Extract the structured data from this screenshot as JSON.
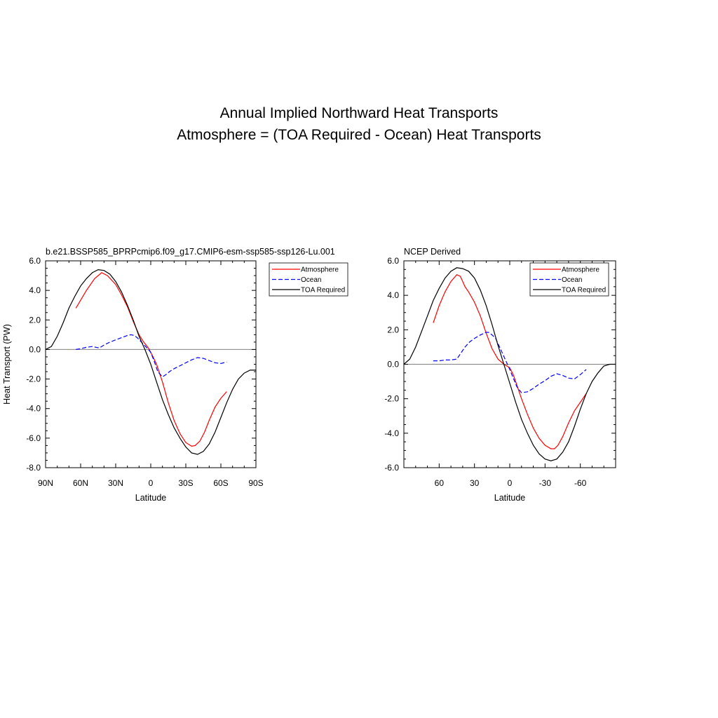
{
  "title": "Annual Implied Northward Heat Transports",
  "subtitle": "Atmosphere = (TOA Required - Ocean) Heat Transports",
  "chart_data": [
    {
      "type": "line",
      "title": "b.e21.BSSP585_BPRPcmip6.f09_g17.CMIP6-esm-ssp585-ssp126-Lu.001",
      "xlabel": "Latitude",
      "ylabel": "Heat Transport (PW)",
      "xlim": [
        90,
        -90
      ],
      "ylim": [
        -8,
        6
      ],
      "xticks": [
        90,
        60,
        30,
        0,
        -30,
        -60,
        -90
      ],
      "xtick_labels": [
        "90N",
        "60N",
        "30N",
        "0",
        "30S",
        "60S",
        "90S"
      ],
      "yticks": [
        6,
        4,
        2,
        0,
        -2,
        -4,
        -6,
        -8
      ],
      "ytick_labels": [
        "6.0",
        "4.0",
        "2.0",
        "0.0",
        "-2.0",
        "-4.0",
        "-6.0",
        "-8.0"
      ],
      "legend_position": "outside-right",
      "zero_line": true,
      "series": [
        {
          "name": "Atmosphere",
          "color": "#ff0000",
          "dash": "solid",
          "x": [
            64,
            55,
            48,
            42,
            37,
            30,
            25,
            20,
            15,
            10,
            6,
            2,
            0,
            -2,
            -5,
            -10,
            -15,
            -20,
            -25,
            -30,
            -35,
            -38,
            -42,
            -46,
            -50,
            -55,
            -60,
            -65
          ],
          "y": [
            2.8,
            4.0,
            4.8,
            5.2,
            5.0,
            4.4,
            3.7,
            2.9,
            1.9,
            1.0,
            0.5,
            0.1,
            -0.2,
            -0.5,
            -1.0,
            -2.2,
            -3.6,
            -4.8,
            -5.7,
            -6.3,
            -6.55,
            -6.5,
            -6.2,
            -5.6,
            -4.8,
            -3.9,
            -3.3,
            -2.85
          ]
        },
        {
          "name": "Ocean",
          "color": "#0000ff",
          "dash": "dashed",
          "x": [
            64,
            60,
            55,
            50,
            47,
            44,
            40,
            35,
            30,
            25,
            20,
            17,
            14,
            11,
            8,
            5,
            2,
            0,
            -3,
            -6,
            -10,
            -13,
            -16,
            -20,
            -25,
            -30,
            -35,
            -40,
            -45,
            -50,
            -55,
            -60,
            -65
          ],
          "y": [
            0.0,
            0.05,
            0.15,
            0.2,
            0.15,
            0.1,
            0.3,
            0.5,
            0.65,
            0.8,
            0.95,
            1.0,
            0.95,
            0.75,
            0.5,
            0.25,
            0.0,
            -0.2,
            -0.8,
            -1.5,
            -1.85,
            -1.7,
            -1.5,
            -1.3,
            -1.1,
            -0.9,
            -0.7,
            -0.55,
            -0.6,
            -0.75,
            -0.9,
            -0.95,
            -0.85
          ]
        },
        {
          "name": "TOA Required",
          "color": "#000000",
          "dash": "solid",
          "x": [
            90,
            85,
            80,
            75,
            70,
            65,
            60,
            55,
            50,
            45,
            40,
            35,
            30,
            25,
            20,
            15,
            10,
            5,
            0,
            -5,
            -10,
            -15,
            -20,
            -25,
            -30,
            -35,
            -40,
            -45,
            -50,
            -55,
            -60,
            -65,
            -70,
            -75,
            -80,
            -85,
            -90
          ],
          "y": [
            0.0,
            0.2,
            0.9,
            1.8,
            2.8,
            3.6,
            4.3,
            4.8,
            5.2,
            5.4,
            5.35,
            5.1,
            4.6,
            3.9,
            3.0,
            2.0,
            0.9,
            0.0,
            -1.0,
            -2.2,
            -3.4,
            -4.4,
            -5.3,
            -6.0,
            -6.6,
            -7.0,
            -7.1,
            -6.9,
            -6.4,
            -5.6,
            -4.6,
            -3.6,
            -2.7,
            -2.0,
            -1.6,
            -1.4,
            -1.4
          ]
        }
      ]
    },
    {
      "type": "line",
      "title": "NCEP Derived",
      "xlabel": "Latitude",
      "ylabel": "",
      "xlim": [
        90,
        -90
      ],
      "ylim": [
        -6,
        6
      ],
      "xticks": [
        60,
        30,
        0,
        -30,
        -60
      ],
      "xtick_labels": [
        "60",
        "30",
        "0",
        "-30",
        "-60"
      ],
      "yticks": [
        6,
        4,
        2,
        0,
        -2,
        -4,
        -6
      ],
      "ytick_labels": [
        "6.0",
        "4.0",
        "2.0",
        "0.0",
        "-2.0",
        "-4.0",
        "-6.0"
      ],
      "legend_position": "top-right",
      "zero_line": true,
      "series": [
        {
          "name": "Atmosphere",
          "color": "#ff0000",
          "dash": "solid",
          "x": [
            65,
            60,
            55,
            50,
            45,
            42,
            40,
            38,
            35,
            30,
            25,
            20,
            15,
            10,
            5,
            0,
            -3,
            -6,
            -10,
            -15,
            -20,
            -25,
            -30,
            -35,
            -38,
            -41,
            -45,
            -50,
            -55,
            -60,
            -65
          ],
          "y": [
            2.4,
            3.4,
            4.2,
            4.8,
            5.2,
            5.1,
            4.8,
            4.5,
            4.2,
            3.6,
            2.8,
            1.8,
            0.9,
            0.3,
            0.0,
            -0.2,
            -0.6,
            -1.2,
            -2.0,
            -2.9,
            -3.7,
            -4.3,
            -4.7,
            -4.9,
            -4.9,
            -4.7,
            -4.2,
            -3.4,
            -2.7,
            -2.2,
            -1.7
          ]
        },
        {
          "name": "Ocean",
          "color": "#0000ff",
          "dash": "dashed",
          "x": [
            65,
            60,
            55,
            50,
            45,
            42,
            38,
            34,
            30,
            25,
            20,
            18,
            15,
            12,
            8,
            4,
            0,
            -3,
            -6,
            -10,
            -15,
            -20,
            -25,
            -30,
            -35,
            -40,
            -45,
            -50,
            -55,
            -60,
            -65
          ],
          "y": [
            0.2,
            0.2,
            0.25,
            0.25,
            0.3,
            0.6,
            1.0,
            1.3,
            1.5,
            1.7,
            1.85,
            1.85,
            1.7,
            1.5,
            0.9,
            0.3,
            -0.3,
            -0.8,
            -1.3,
            -1.65,
            -1.6,
            -1.4,
            -1.15,
            -0.95,
            -0.7,
            -0.55,
            -0.65,
            -0.8,
            -0.85,
            -0.6,
            -0.3
          ]
        },
        {
          "name": "TOA Required",
          "color": "#000000",
          "dash": "solid",
          "x": [
            90,
            85,
            80,
            75,
            70,
            65,
            60,
            55,
            50,
            45,
            40,
            35,
            30,
            25,
            20,
            15,
            10,
            5,
            0,
            -5,
            -10,
            -15,
            -20,
            -25,
            -30,
            -35,
            -40,
            -45,
            -50,
            -55,
            -60,
            -65,
            -70,
            -75,
            -80,
            -85,
            -90
          ],
          "y": [
            0.0,
            0.3,
            1.0,
            1.9,
            2.8,
            3.7,
            4.4,
            5.0,
            5.4,
            5.6,
            5.55,
            5.4,
            5.0,
            4.3,
            3.4,
            2.3,
            1.1,
            0.0,
            -1.1,
            -2.2,
            -3.2,
            -4.0,
            -4.7,
            -5.2,
            -5.5,
            -5.6,
            -5.5,
            -5.1,
            -4.5,
            -3.6,
            -2.6,
            -1.7,
            -1.0,
            -0.5,
            -0.1,
            0.0,
            0.0
          ]
        }
      ]
    }
  ]
}
